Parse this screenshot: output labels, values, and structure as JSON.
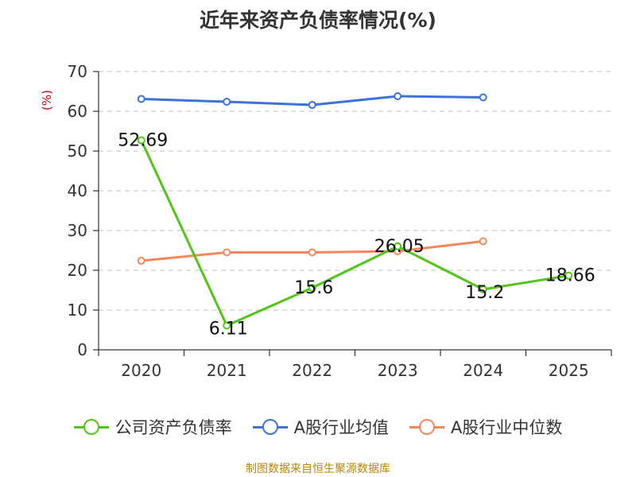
{
  "title": "近年来资产负债率情况(%)",
  "source": "制图数据来自恒生聚源数据库",
  "colors": {
    "company": "#52c41a",
    "industry_avg": "#3b73d8",
    "industry_median": "#f5885a"
  },
  "chart_data": {
    "type": "line",
    "title": "近年来资产负债率情况(%)",
    "ylabel": "(%)",
    "categories": [
      "2020",
      "2021",
      "2022",
      "2023",
      "2024",
      "2025"
    ],
    "ylim": [
      0,
      70
    ],
    "yticks": [
      0,
      10,
      20,
      30,
      40,
      50,
      60,
      70
    ],
    "grid": true,
    "legend_position": "bottom",
    "series": [
      {
        "name": "公司资产负债率",
        "values": [
          52.69,
          6.11,
          15.6,
          26.05,
          15.2,
          18.66
        ],
        "labels": [
          "52.69",
          "6.11",
          "15.6",
          "26.05",
          "15.2",
          "18.66"
        ]
      },
      {
        "name": "A股行业均值",
        "values": [
          63.1,
          62.4,
          61.6,
          63.8,
          63.5,
          null
        ]
      },
      {
        "name": "A股行业中位数",
        "values": [
          22.4,
          24.5,
          24.5,
          24.8,
          27.3,
          null
        ]
      }
    ]
  }
}
